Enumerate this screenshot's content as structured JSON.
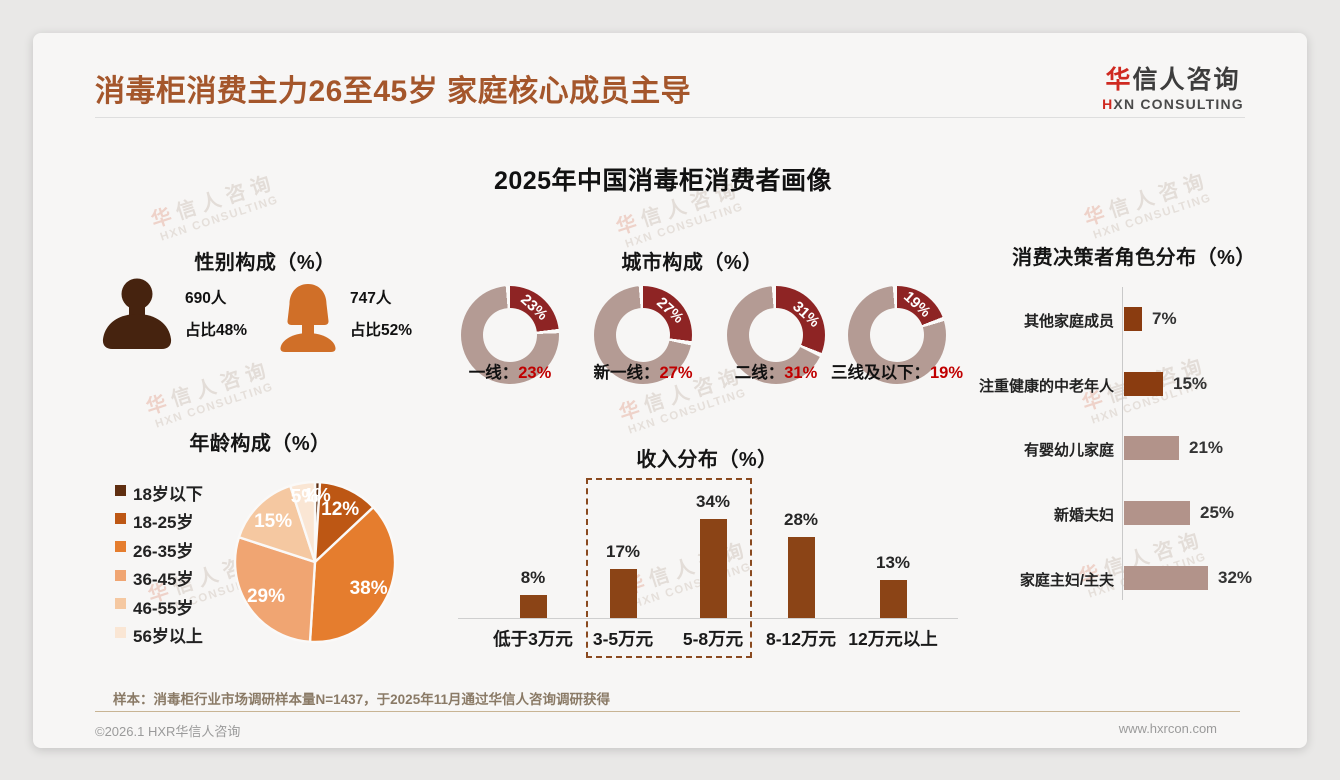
{
  "page": {
    "title": "消毒柜消费主力26至45岁 家庭核心成员主导",
    "subtitle": "2025年中国消毒柜消费者画像"
  },
  "logo": {
    "cn_first": "华",
    "cn_rest": "信人咨询",
    "en_first": "H",
    "en_rest": "XN CONSULTING"
  },
  "watermark": {
    "line1_first": "华",
    "line1_rest": "信人咨询",
    "line2": "HXN CONSULTING"
  },
  "gender": {
    "title": "性别构成（%）",
    "male": {
      "count": "690人",
      "share": "占比48%"
    },
    "female": {
      "count": "747人",
      "share": "占比52%"
    }
  },
  "footer": {
    "note": "样本：消毒柜行业市场调研样本量N=1437，于2025年11月通过华信人咨询调研获得",
    "copyright": "©2026.1 HXR华信人咨询",
    "website": "www.hxrcon.com"
  },
  "palette": {
    "title_brown": "#a4562b",
    "logo_red": "#cf2920",
    "donut_slice": "#8e2424",
    "donut_rest": "#b49b94",
    "value_red": "#c00000",
    "male_icon": "#46230f",
    "female_icon": "#d06f28",
    "bar_dark": "#8a3c10",
    "bar_light": "#b2938a",
    "income_bar": "#8b4416",
    "highlight_border": "#8a4a1f",
    "divider_tan": "#c8b494"
  },
  "chart_data": [
    {
      "type": "pie",
      "variant": "donut-small-multiples",
      "title": "城市构成（%）",
      "categories": [
        "一线",
        "新一线",
        "二线",
        "三线及以下"
      ],
      "values": [
        23,
        27,
        31,
        19
      ],
      "colon": "：",
      "slice_color": "#8e2424",
      "rest_color": "#b49b94",
      "note": "each donut: highlighted slice starts at 12 o'clock, clockwise; value label inside slice; category label below with red percentage"
    },
    {
      "type": "bar",
      "orientation": "horizontal",
      "title": "消费决策者角色分布（%）",
      "categories": [
        "其他家庭成员",
        "注重健康的中老年人",
        "有婴幼儿家庭",
        "新婚夫妇",
        "家庭主妇/主夫"
      ],
      "values": [
        7,
        15,
        21,
        25,
        32
      ],
      "bar_tones": [
        "dark",
        "dark",
        "light",
        "light",
        "light"
      ],
      "xlim": [
        0,
        35
      ],
      "grid": false,
      "value_labels": "right of bars"
    },
    {
      "type": "pie",
      "title": "年龄构成（%）",
      "categories": [
        "18岁以下",
        "18-25岁",
        "26-35岁",
        "36-45岁",
        "46-55岁",
        "56岁以上"
      ],
      "values": [
        1,
        12,
        38,
        29,
        15,
        5
      ],
      "colors": [
        "#5f2e10",
        "#bd5714",
        "#e57d2e",
        "#f0a572",
        "#f5c8a1",
        "#fae6d4"
      ],
      "legend_position": "left",
      "start_angle": "12 o'clock, clockwise",
      "label_color": "#ffffff"
    },
    {
      "type": "bar",
      "orientation": "vertical",
      "title": "收入分布（%）",
      "categories": [
        "低于3万元",
        "3-5万元",
        "5-8万元",
        "8-12万元",
        "12万元以上"
      ],
      "values": [
        8,
        17,
        34,
        28,
        13
      ],
      "bar_color": "#8b4416",
      "highlight_categories": [
        "3-5万元",
        "5-8万元"
      ],
      "highlight_style": "dashed brown rectangle",
      "ylim": [
        0,
        40
      ],
      "grid": false,
      "value_labels": "above bars"
    }
  ]
}
